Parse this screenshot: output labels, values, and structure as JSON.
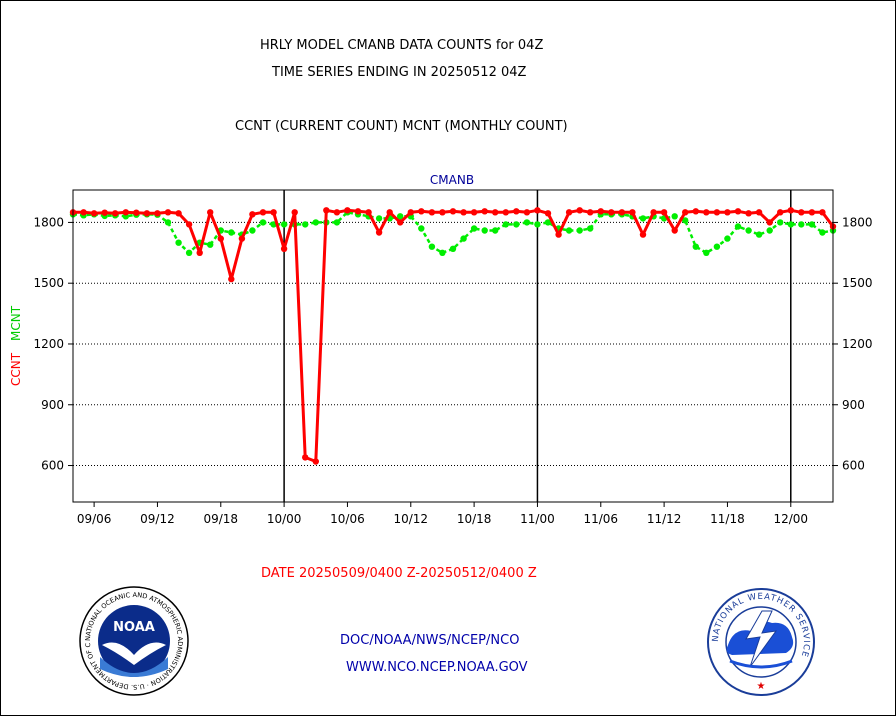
{
  "header": {
    "line1": "HRLY MODEL CMANB DATA COUNTS for 04Z",
    "line2": "TIME SERIES ENDING IN 20250512 04Z",
    "line3": "CCNT (CURRENT COUNT) MCNT (MONTHLY COUNT)"
  },
  "footer": {
    "date_range": "DATE 20250509/0400 Z-20250512/0400 Z",
    "org_path": "DOC/NOAA/NWS/NCEP/NCO",
    "url": "WWW.NCO.NCEP.NOAA.GOV"
  },
  "logos": {
    "noaa_text": "NOAA",
    "noaa_ring": "NATIONAL OCEANIC AND ATMOSPHERIC ADMINISTRATION · U.S. DEPARTMENT OF COMMERCE ·",
    "nws_ring": "NATIONAL WEATHER SERVICE"
  },
  "chart_data": {
    "type": "line",
    "title": "CMANB",
    "ylabel_left_ccnt": "CCNT",
    "ylabel_left_mcnt": "MCNT",
    "ylim": [
      420,
      1960
    ],
    "yticks": [
      600,
      900,
      1200,
      1500,
      1800
    ],
    "x_tick_labels": [
      "09/06",
      "09/12",
      "09/18",
      "10/00",
      "10/06",
      "10/12",
      "10/18",
      "11/00",
      "11/06",
      "11/12",
      "11/18",
      "12/00"
    ],
    "x_tick_positions": [
      2,
      8,
      14,
      20,
      26,
      32,
      38,
      44,
      50,
      56,
      62,
      68
    ],
    "x_major_positions": [
      20,
      44,
      68
    ],
    "xlim": [
      0,
      72
    ],
    "grid": true,
    "colors": {
      "ccnt": "#ff0000",
      "mcnt": "#00ee00",
      "title": "#000099",
      "footer": "#0000aa",
      "date": "#ff0000"
    },
    "series": [
      {
        "name": "CCNT",
        "x": [
          0,
          1,
          2,
          3,
          4,
          5,
          6,
          7,
          8,
          9,
          10,
          11,
          12,
          13,
          14,
          15,
          16,
          17,
          18,
          19,
          20,
          21,
          22,
          23,
          24,
          25,
          26,
          27,
          28,
          29,
          30,
          31,
          32,
          33,
          34,
          35,
          36,
          37,
          38,
          39,
          40,
          41,
          42,
          43,
          44,
          45,
          46,
          47,
          48,
          49,
          50,
          51,
          52,
          53,
          54,
          55,
          56,
          57,
          58,
          59,
          60,
          61,
          62,
          63,
          64,
          65,
          66,
          67,
          68,
          69,
          70,
          71,
          72
        ],
        "values": [
          1850,
          1850,
          1845,
          1848,
          1845,
          1850,
          1848,
          1845,
          1845,
          1850,
          1845,
          1790,
          1650,
          1850,
          1720,
          1520,
          1720,
          1840,
          1850,
          1850,
          1670,
          1850,
          640,
          620,
          1860,
          1850,
          1860,
          1855,
          1850,
          1750,
          1850,
          1800,
          1850,
          1855,
          1850,
          1850,
          1855,
          1850,
          1850,
          1855,
          1850,
          1850,
          1855,
          1850,
          1860,
          1845,
          1740,
          1850,
          1860,
          1850,
          1855,
          1850,
          1850,
          1850,
          1740,
          1850,
          1850,
          1760,
          1850,
          1855,
          1850,
          1850,
          1850,
          1855,
          1845,
          1850,
          1800,
          1850,
          1860,
          1850,
          1850,
          1850,
          1780
        ]
      },
      {
        "name": "MCNT",
        "x": [
          0,
          1,
          2,
          3,
          4,
          5,
          6,
          7,
          8,
          9,
          10,
          11,
          12,
          13,
          14,
          15,
          16,
          17,
          18,
          19,
          20,
          21,
          22,
          23,
          24,
          25,
          26,
          27,
          28,
          29,
          30,
          31,
          32,
          33,
          34,
          35,
          36,
          37,
          38,
          39,
          40,
          41,
          42,
          43,
          44,
          45,
          46,
          47,
          48,
          49,
          50,
          51,
          52,
          53,
          54,
          55,
          56,
          57,
          58,
          59,
          60,
          61,
          62,
          63,
          64,
          65,
          66,
          67,
          68,
          69,
          70,
          71,
          72
        ],
        "values": [
          1840,
          1835,
          1840,
          1832,
          1835,
          1830,
          1838,
          1840,
          1838,
          1800,
          1700,
          1650,
          1700,
          1690,
          1760,
          1750,
          1740,
          1760,
          1800,
          1790,
          1790,
          1790,
          1790,
          1800,
          1800,
          1800,
          1850,
          1840,
          1830,
          1820,
          1820,
          1830,
          1830,
          1770,
          1680,
          1650,
          1670,
          1720,
          1770,
          1760,
          1760,
          1790,
          1790,
          1800,
          1790,
          1800,
          1770,
          1760,
          1760,
          1770,
          1840,
          1840,
          1840,
          1830,
          1820,
          1830,
          1820,
          1830,
          1810,
          1680,
          1650,
          1680,
          1720,
          1780,
          1760,
          1740,
          1760,
          1800,
          1790,
          1790,
          1790,
          1750,
          1760
        ]
      }
    ]
  }
}
